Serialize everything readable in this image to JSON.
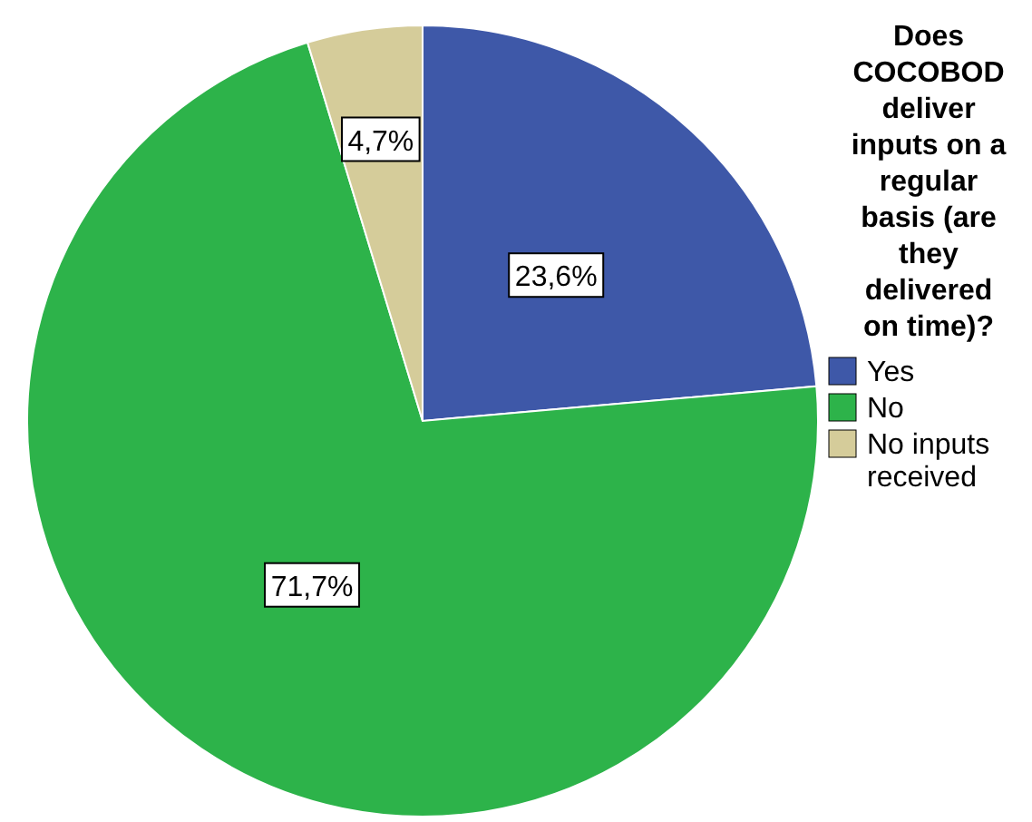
{
  "chart_data": {
    "type": "pie",
    "legend_title": "Does COCOBOD deliver inputs on a regular basis (are they delivered on time)?",
    "categories": [
      "Yes",
      "No",
      "No inputs received"
    ],
    "values": [
      23.6,
      71.7,
      4.7
    ],
    "colors": [
      "#3e58a8",
      "#2db34a",
      "#d5cc9a"
    ],
    "value_labels": [
      "23,6%",
      "71,7%",
      "4,7%"
    ],
    "legend": "right"
  }
}
